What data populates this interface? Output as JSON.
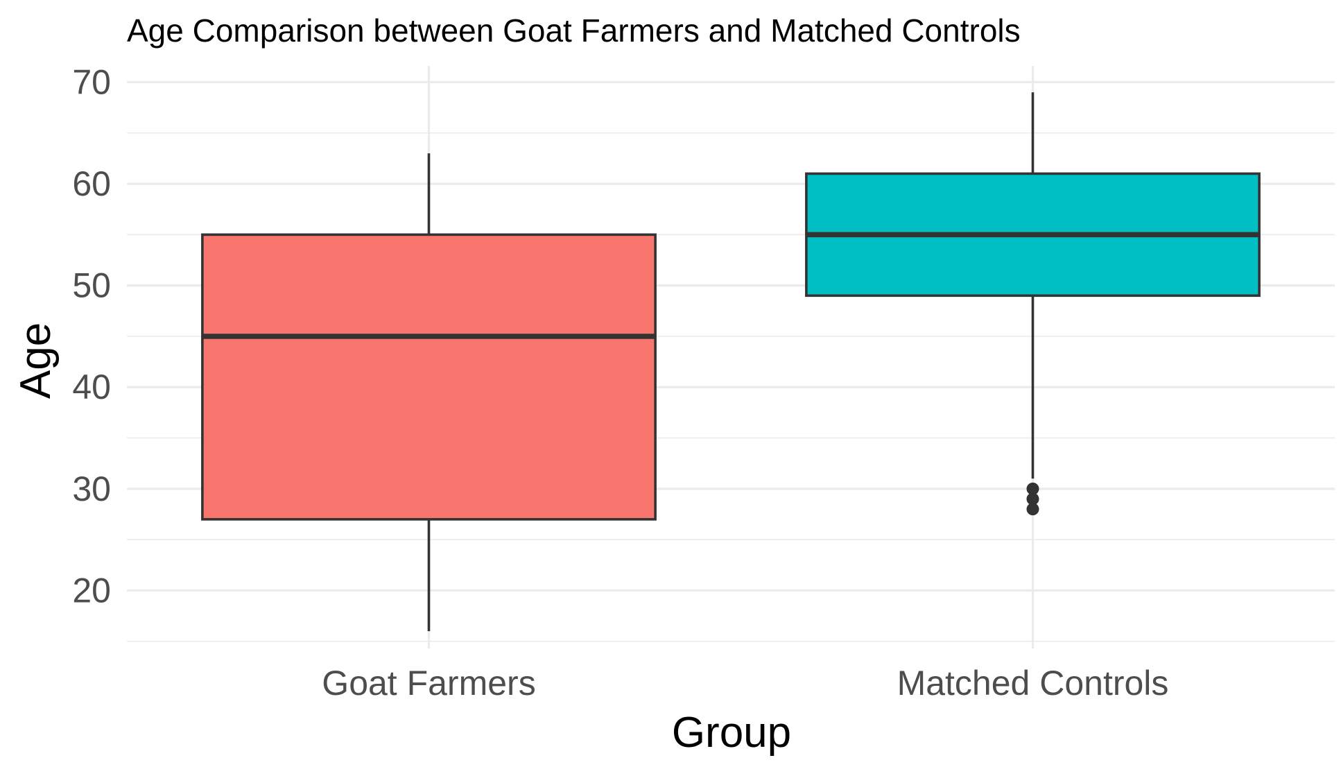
{
  "chart_data": {
    "type": "boxplot",
    "title": "Age Comparison between Goat Farmers and Matched Controls",
    "xlabel": "Group",
    "ylabel": "Age",
    "ylim": [
      14.3,
      71.6
    ],
    "yticks": [
      20,
      30,
      40,
      50,
      60,
      70
    ],
    "grid": true,
    "legend": "none",
    "categories": [
      "Goat Farmers",
      "Matched Controls"
    ],
    "boxes": [
      {
        "category": "Goat Farmers",
        "whisker_low": 16,
        "q1": 27,
        "median": 45,
        "q3": 55,
        "whisker_high": 63,
        "outliers": [],
        "color": "#F8766D"
      },
      {
        "category": "Matched Controls",
        "whisker_low": 31,
        "q1": 49,
        "median": 55,
        "q3": 61,
        "whisker_high": 69,
        "outliers": [
          30,
          29,
          28
        ],
        "color": "#00BFC4"
      }
    ],
    "colors": {
      "box_outline": "#333333",
      "grid": "#EBEBEB",
      "tick_text": "#4D4D4D"
    }
  }
}
